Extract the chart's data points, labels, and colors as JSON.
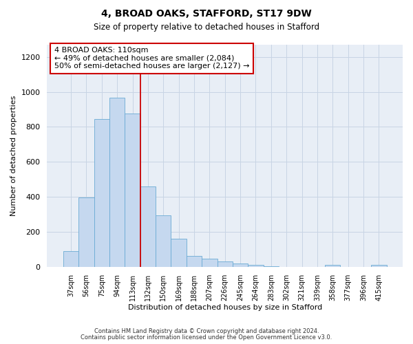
{
  "title1": "4, BROAD OAKS, STAFFORD, ST17 9DW",
  "title2": "Size of property relative to detached houses in Stafford",
  "xlabel": "Distribution of detached houses by size in Stafford",
  "ylabel": "Number of detached properties",
  "categories": [
    "37sqm",
    "56sqm",
    "75sqm",
    "94sqm",
    "113sqm",
    "132sqm",
    "150sqm",
    "169sqm",
    "188sqm",
    "207sqm",
    "226sqm",
    "245sqm",
    "264sqm",
    "283sqm",
    "302sqm",
    "321sqm",
    "339sqm",
    "358sqm",
    "377sqm",
    "396sqm",
    "415sqm"
  ],
  "values": [
    88,
    397,
    845,
    968,
    878,
    458,
    295,
    160,
    63,
    48,
    30,
    20,
    12,
    3,
    1,
    1,
    0,
    10,
    0,
    0,
    12
  ],
  "bar_color": "#c5d8ef",
  "bar_edgecolor": "#6aaad4",
  "vline_x": 4.5,
  "vline_color": "#cc0000",
  "annotation_text": "4 BROAD OAKS: 110sqm\n← 49% of detached houses are smaller (2,084)\n50% of semi-detached houses are larger (2,127) →",
  "annotation_box_color": "#cc0000",
  "ylim": [
    0,
    1270
  ],
  "yticks": [
    0,
    200,
    400,
    600,
    800,
    1000,
    1200
  ],
  "footer1": "Contains HM Land Registry data © Crown copyright and database right 2024.",
  "footer2": "Contains public sector information licensed under the Open Government Licence v3.0.",
  "bg_axes": "#e8eef6",
  "grid_color": "#c8d4e4"
}
